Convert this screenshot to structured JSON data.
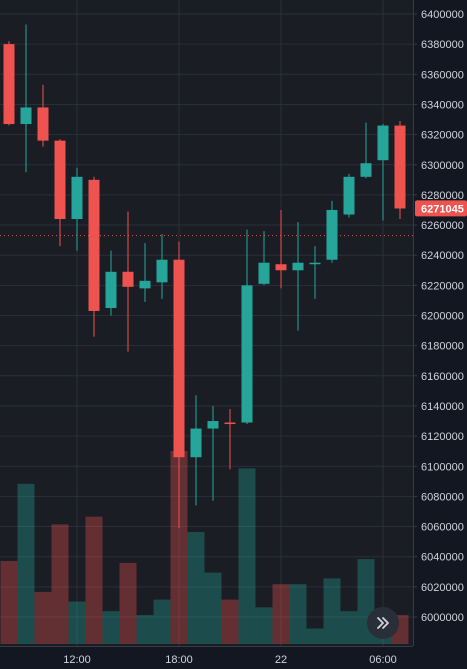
{
  "chart_data": {
    "type": "candlestick",
    "title": "",
    "xlabel": "",
    "ylabel": "",
    "ylim": [
      5985000,
      6405000
    ],
    "y_ticks": [
      6000000,
      6020000,
      6040000,
      6060000,
      6080000,
      6100000,
      6120000,
      6140000,
      6160000,
      6180000,
      6200000,
      6220000,
      6240000,
      6260000,
      6280000,
      6300000,
      6320000,
      6340000,
      6360000,
      6380000,
      6400000
    ],
    "x_ticks": [
      {
        "label": "12:00",
        "index": 4
      },
      {
        "label": "18:00",
        "index": 10
      },
      {
        "label": "22",
        "index": 16
      },
      {
        "label": "06:00",
        "index": 22
      }
    ],
    "grid": true,
    "current_price": {
      "label": "6271045",
      "value": 6271045,
      "color": "#ef5350"
    },
    "reference_line": 6253000,
    "up_color": "#26a69a",
    "down_color": "#ef5350",
    "candles": [
      {
        "open": 6380000,
        "high": 6382000,
        "low": 6326000,
        "close": 6327000
      },
      {
        "open": 6327000,
        "high": 6393000,
        "low": 6295000,
        "close": 6338000
      },
      {
        "open": 6338000,
        "high": 6353000,
        "low": 6312000,
        "close": 6316000
      },
      {
        "open": 6316000,
        "high": 6317000,
        "low": 6246000,
        "close": 6264000
      },
      {
        "open": 6264000,
        "high": 6298000,
        "low": 6243000,
        "close": 6292000
      },
      {
        "open": 6290000,
        "high": 6292000,
        "low": 6186000,
        "close": 6203000
      },
      {
        "open": 6205000,
        "high": 6243000,
        "low": 6200000,
        "close": 6229000
      },
      {
        "open": 6229000,
        "high": 6269000,
        "low": 6176000,
        "close": 6219000
      },
      {
        "open": 6218000,
        "high": 6248000,
        "low": 6209000,
        "close": 6223000
      },
      {
        "open": 6222000,
        "high": 6254000,
        "low": 6211000,
        "close": 6237000
      },
      {
        "open": 6237000,
        "high": 6249000,
        "low": 6059000,
        "close": 6106000
      },
      {
        "open": 6106000,
        "high": 6147000,
        "low": 6074000,
        "close": 6125000
      },
      {
        "open": 6125000,
        "high": 6140000,
        "low": 6077000,
        "close": 6130000
      },
      {
        "open": 6129000,
        "high": 6138000,
        "low": 6098000,
        "close": 6128000
      },
      {
        "open": 6129000,
        "high": 6257000,
        "low": 6128000,
        "close": 6220000
      },
      {
        "open": 6221000,
        "high": 6256000,
        "low": 6220000,
        "close": 6235000
      },
      {
        "open": 6234000,
        "high": 6270000,
        "low": 6218000,
        "close": 6230000
      },
      {
        "open": 6230000,
        "high": 6262000,
        "low": 6190000,
        "close": 6235000
      },
      {
        "open": 6234000,
        "high": 6246000,
        "low": 6211000,
        "close": 6235000
      },
      {
        "open": 6237000,
        "high": 6276000,
        "low": 6235000,
        "close": 6270000
      },
      {
        "open": 6267000,
        "high": 6294000,
        "low": 6265000,
        "close": 6292000
      },
      {
        "open": 6292000,
        "high": 6328000,
        "low": 6291000,
        "close": 6301000
      },
      {
        "open": 6303000,
        "high": 6327000,
        "low": 6263000,
        "close": 6326000
      },
      {
        "open": 6326000,
        "high": 6329000,
        "low": 6264000,
        "close": 6271000
      }
    ],
    "volume": [
      {
        "value": 0.43,
        "direction": "down"
      },
      {
        "value": 0.83,
        "direction": "up"
      },
      {
        "value": 0.27,
        "direction": "down"
      },
      {
        "value": 0.62,
        "direction": "down"
      },
      {
        "value": 0.22,
        "direction": "up"
      },
      {
        "value": 0.66,
        "direction": "down"
      },
      {
        "value": 0.17,
        "direction": "up"
      },
      {
        "value": 0.42,
        "direction": "down"
      },
      {
        "value": 0.15,
        "direction": "up"
      },
      {
        "value": 0.23,
        "direction": "up"
      },
      {
        "value": 1.0,
        "direction": "down"
      },
      {
        "value": 0.58,
        "direction": "up"
      },
      {
        "value": 0.37,
        "direction": "up"
      },
      {
        "value": 0.23,
        "direction": "down"
      },
      {
        "value": 0.91,
        "direction": "up"
      },
      {
        "value": 0.19,
        "direction": "up"
      },
      {
        "value": 0.31,
        "direction": "down"
      },
      {
        "value": 0.31,
        "direction": "up"
      },
      {
        "value": 0.08,
        "direction": "up"
      },
      {
        "value": 0.34,
        "direction": "up"
      },
      {
        "value": 0.17,
        "direction": "up"
      },
      {
        "value": 0.44,
        "direction": "up"
      },
      {
        "value": 0.12,
        "direction": "up"
      },
      {
        "value": 0.15,
        "direction": "down"
      }
    ]
  },
  "ui": {
    "scroll_button_icon": "double-chevron-right-icon"
  }
}
